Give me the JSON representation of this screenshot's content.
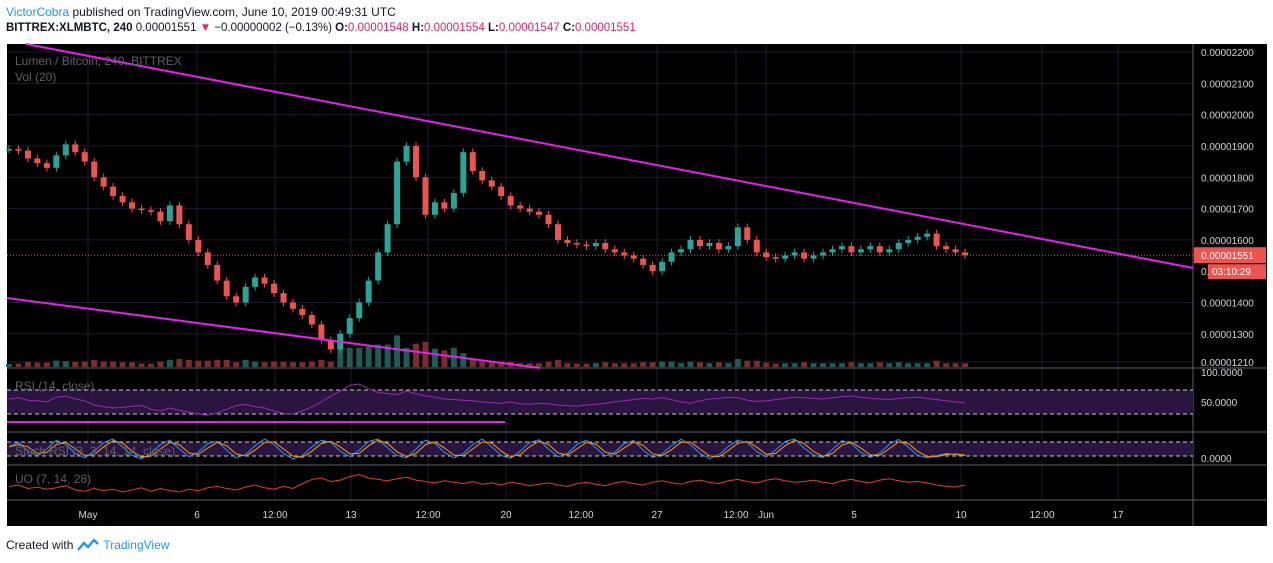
{
  "header": {
    "author": "VictorCobra",
    "published": "published on TradingView.com, June 10, 2019 00:49:31 UTC",
    "symbol": "BITTREX:XLMBTC, 240",
    "last": "0.00001551",
    "arrow": "▼",
    "change": "−0.00000002 (−0.13%)",
    "o_label": "O:",
    "o": "0.00001548",
    "h_label": "H:",
    "h": "0.00001554",
    "l_label": "L:",
    "l": "0.00001547",
    "c_label": "C:",
    "c": "0.00001551"
  },
  "legend": {
    "title": "Lumen / Bitcoin, 240, BITTREX",
    "volume": "Vol (20)",
    "rsi": "RSI (14, close)",
    "stoch": "Stoch RSI (3, 3, 14, 14, close)",
    "uo": "UO (7, 14, 28)"
  },
  "footer": {
    "created": "Created with",
    "brand": "TradingView"
  },
  "colors": {
    "up": "#26a69a",
    "down": "#ef5350",
    "trend": "#e91ef0",
    "rsi": "#9c27b0",
    "uo": "#e53935",
    "price_tag": "#ef5350"
  },
  "chart_data": {
    "type": "candlestick",
    "price_axis": {
      "ticks": [
        "0.00002200",
        "0.00002100",
        "0.00002000",
        "0.00001900",
        "0.00001800",
        "0.00001700",
        "0.00001600",
        "0.00001400",
        "0.00001300",
        "0.00001210"
      ],
      "tick_values": [
        2200,
        2100,
        2000,
        1900,
        1800,
        1700,
        1600,
        1400,
        1300,
        1210
      ],
      "current_price": "0.00001551",
      "current_value": 1551,
      "countdown": "03:10:29",
      "hidden_tick": "0."
    },
    "rsi_axis": {
      "ticks": [
        "100.0000",
        "50.0000"
      ],
      "upper_band": 70,
      "lower_band": 30
    },
    "stoch_axis": {
      "ticks": [
        "0.0000"
      ]
    },
    "time_axis": [
      "May",
      "6",
      "12:00",
      "13",
      "12:00",
      "20",
      "12:00",
      "27",
      "12:00",
      "Jun",
      "5",
      "12:00",
      "10",
      "12:00",
      "17"
    ],
    "price_path": [
      1890,
      1885,
      1860,
      1845,
      1830,
      1870,
      1905,
      1880,
      1850,
      1800,
      1770,
      1740,
      1720,
      1700,
      1695,
      1690,
      1660,
      1710,
      1650,
      1600,
      1560,
      1520,
      1470,
      1420,
      1400,
      1450,
      1480,
      1460,
      1430,
      1400,
      1380,
      1360,
      1330,
      1280,
      1250,
      1300,
      1350,
      1400,
      1470,
      1560,
      1650,
      1850,
      1900,
      1800,
      1680,
      1720,
      1700,
      1750,
      1880,
      1820,
      1790,
      1770,
      1740,
      1710,
      1700,
      1690,
      1680,
      1650,
      1600,
      1590,
      1585,
      1580,
      1590,
      1570,
      1560,
      1550,
      1540,
      1520,
      1500,
      1530,
      1560,
      1570,
      1600,
      1580,
      1590,
      1570,
      1580,
      1640,
      1600,
      1560,
      1545,
      1540,
      1550,
      1560,
      1540,
      1550,
      1560,
      1570,
      1580,
      1560,
      1570,
      1580,
      1560,
      1570,
      1590,
      1600,
      1610,
      1620,
      1580,
      1570,
      1560,
      1551
    ],
    "rsi_values": [
      55,
      57,
      53,
      52,
      50,
      58,
      60,
      55,
      52,
      45,
      42,
      40,
      41,
      43,
      44,
      38,
      35,
      40,
      36,
      33,
      30,
      28,
      32,
      38,
      44,
      46,
      42,
      40,
      35,
      31,
      30,
      35,
      42,
      50,
      60,
      68,
      78,
      80,
      72,
      66,
      64,
      62,
      68,
      64,
      60,
      58,
      55,
      54,
      53,
      52,
      50,
      49,
      48,
      50,
      47,
      46,
      48,
      47,
      45,
      44,
      43,
      45,
      46,
      48,
      50,
      52,
      54,
      56,
      55,
      57,
      54,
      50,
      48,
      52,
      55,
      56,
      58,
      57,
      53,
      51,
      52,
      54,
      56,
      58,
      57,
      56,
      55,
      57,
      59,
      60,
      58,
      56,
      55,
      54,
      56,
      57,
      58,
      56,
      54,
      52,
      50,
      49
    ],
    "stoch_values": [
      60,
      80,
      40,
      20,
      50,
      90,
      70,
      30,
      10,
      40,
      80,
      95,
      60,
      20,
      5,
      30,
      70,
      90,
      50,
      15,
      35,
      75,
      85,
      45,
      10,
      25,
      65,
      95,
      70,
      30,
      5,
      20,
      60,
      90,
      80,
      40,
      15,
      45,
      85,
      95,
      55,
      20,
      10,
      50,
      90,
      75,
      35,
      10,
      30,
      70,
      95,
      60,
      20,
      8,
      40,
      80,
      92,
      50,
      15,
      30,
      70,
      90,
      55,
      18,
      35,
      75,
      88,
      45,
      12,
      28,
      66,
      94,
      70,
      30,
      6,
      24,
      62,
      90,
      78,
      38,
      14,
      46,
      84,
      96,
      54,
      22,
      12,
      48,
      88,
      74,
      34,
      12,
      32,
      72,
      93,
      58,
      22,
      10,
      20,
      30,
      25,
      20
    ],
    "uo_values": [
      48,
      50,
      45,
      47,
      44,
      46,
      49,
      43,
      41,
      45,
      42,
      44,
      40,
      43,
      46,
      41,
      45,
      42,
      40,
      44,
      42,
      46,
      48,
      45,
      43,
      47,
      50,
      46,
      44,
      48,
      45,
      52,
      58,
      60,
      55,
      57,
      62,
      65,
      60,
      58,
      56,
      59,
      61,
      57,
      55,
      53,
      56,
      54,
      52,
      55,
      51,
      53,
      50,
      54,
      52,
      49,
      51,
      53,
      50,
      48,
      52,
      54,
      51,
      49,
      53,
      55,
      52,
      50,
      54,
      56,
      53,
      51,
      55,
      57,
      54,
      52,
      56,
      58,
      55,
      53,
      57,
      59,
      56,
      54,
      55,
      57,
      54,
      52,
      56,
      58,
      55,
      53,
      57,
      59,
      56,
      54,
      55,
      53,
      50,
      48,
      47,
      50
    ]
  }
}
